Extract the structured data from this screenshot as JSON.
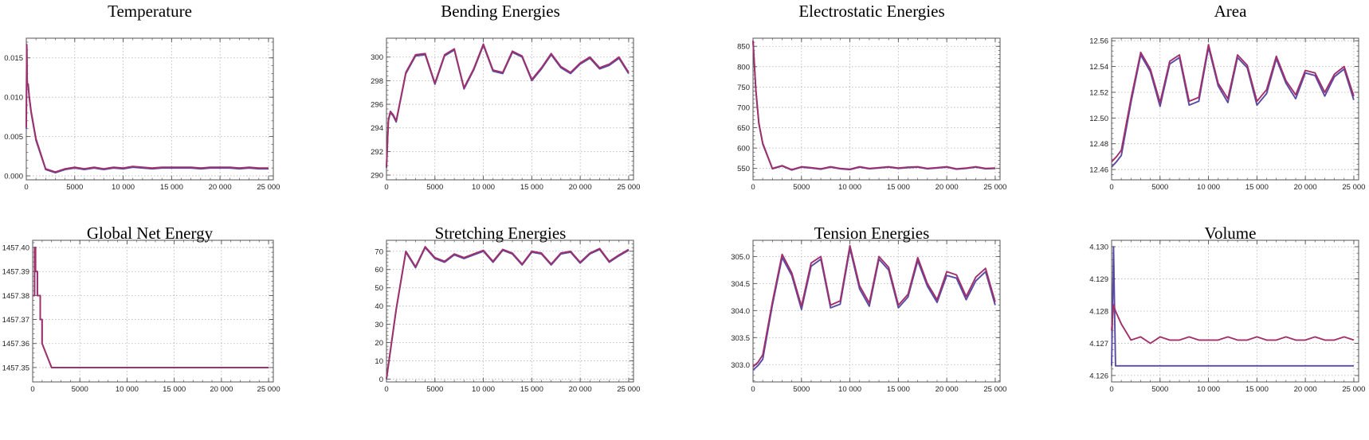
{
  "colors": {
    "series_a": "#5a4aa6",
    "series_b": "#a0306a",
    "grid": "#b3b3b3",
    "frame": "#555555"
  },
  "chart_data": [
    {
      "type": "line",
      "title": "Temperature",
      "xlim": [
        0,
        25500
      ],
      "ylim": [
        -0.0005,
        0.0175
      ],
      "xticks": [
        0,
        5000,
        10000,
        15000,
        20000,
        25000
      ],
      "xtick_labels": [
        "0",
        "5000",
        "10 000",
        "15 000",
        "20 000",
        "25 000"
      ],
      "yticks": [
        0,
        0.005,
        0.01,
        0.015
      ],
      "ytick_labels": [
        "0.000",
        "0.005",
        "0.010",
        "0.015"
      ],
      "x": [
        0,
        50,
        100,
        200,
        300,
        500,
        1000,
        2000,
        3000,
        4000,
        5000,
        6000,
        7000,
        8000,
        9000,
        10000,
        11000,
        12000,
        13000,
        14000,
        15000,
        16000,
        17000,
        18000,
        19000,
        20000,
        21000,
        22000,
        23000,
        24000,
        25000
      ],
      "series": [
        {
          "values": [
            0.006,
            0.0165,
            0.0115,
            0.0115,
            0.01,
            0.008,
            0.0045,
            0.0008,
            0.0004,
            0.0008,
            0.001,
            0.0008,
            0.001,
            0.0008,
            0.001,
            0.0009,
            0.0011,
            0.001,
            0.0009,
            0.001,
            0.001,
            0.001,
            0.001,
            0.0009,
            0.001,
            0.001,
            0.001,
            0.0009,
            0.001,
            0.0009,
            0.0009
          ]
        },
        {
          "values": [
            0.0062,
            0.0167,
            0.0117,
            0.0117,
            0.0102,
            0.0082,
            0.0047,
            0.0009,
            0.0005,
            0.0009,
            0.0011,
            0.0009,
            0.0011,
            0.0009,
            0.0011,
            0.001,
            0.0012,
            0.0011,
            0.001,
            0.0011,
            0.0011,
            0.0011,
            0.0011,
            0.001,
            0.0011,
            0.0011,
            0.0011,
            0.001,
            0.0011,
            0.001,
            0.001
          ]
        }
      ]
    },
    {
      "type": "line",
      "title": "Bending Energies",
      "xlim": [
        0,
        25500
      ],
      "ylim": [
        289.6,
        301.6
      ],
      "xticks": [
        0,
        5000,
        10000,
        15000,
        20000,
        25000
      ],
      "xtick_labels": [
        "0",
        "5000",
        "10 000",
        "15 000",
        "20 000",
        "25 000"
      ],
      "yticks": [
        290,
        292,
        294,
        296,
        298,
        300
      ],
      "ytick_labels": [
        "290",
        "292",
        "294",
        "296",
        "298",
        "300"
      ],
      "x": [
        0,
        200,
        400,
        700,
        1000,
        2000,
        3000,
        4000,
        5000,
        6000,
        7000,
        8000,
        9000,
        10000,
        11000,
        12000,
        13000,
        14000,
        15000,
        16000,
        17000,
        18000,
        19000,
        20000,
        21000,
        22000,
        23000,
        24000,
        25000
      ],
      "series": [
        {
          "values": [
            290.6,
            294.6,
            295.3,
            295.0,
            294.5,
            298.6,
            300.1,
            300.2,
            297.7,
            300.1,
            300.6,
            297.3,
            298.9,
            301.0,
            298.8,
            298.6,
            300.4,
            300.0,
            298.0,
            299.0,
            300.2,
            299.1,
            298.6,
            299.4,
            299.9,
            299.0,
            299.3,
            299.9,
            298.6
          ]
        },
        {
          "values": [
            290.7,
            294.7,
            295.4,
            295.1,
            294.6,
            298.7,
            300.2,
            300.3,
            297.8,
            300.2,
            300.7,
            297.4,
            299.0,
            301.1,
            298.9,
            298.7,
            300.5,
            300.1,
            298.1,
            299.1,
            300.3,
            299.2,
            298.7,
            299.5,
            300.0,
            299.1,
            299.4,
            300.0,
            298.7
          ]
        }
      ]
    },
    {
      "type": "line",
      "title": "Electrostatic Energies",
      "xlim": [
        0,
        25500
      ],
      "ylim": [
        522,
        870
      ],
      "xticks": [
        0,
        5000,
        10000,
        15000,
        20000,
        25000
      ],
      "xtick_labels": [
        "0",
        "5000",
        "10 000",
        "15 000",
        "20 000",
        "25 000"
      ],
      "yticks": [
        550,
        600,
        650,
        700,
        750,
        800,
        850
      ],
      "ytick_labels": [
        "550",
        "600",
        "650",
        "700",
        "750",
        "800",
        "850"
      ],
      "x": [
        0,
        300,
        600,
        1000,
        2000,
        3000,
        4000,
        5000,
        6000,
        7000,
        8000,
        9000,
        10000,
        11000,
        12000,
        13000,
        14000,
        15000,
        16000,
        17000,
        18000,
        19000,
        20000,
        21000,
        22000,
        23000,
        24000,
        25000
      ],
      "series": [
        {
          "values": [
            862,
            740,
            660,
            610,
            549,
            556,
            546,
            553,
            551,
            548,
            553,
            549,
            547,
            553,
            549,
            551,
            553,
            550,
            552,
            553,
            549,
            551,
            553,
            548,
            550,
            553,
            549,
            550
          ]
        },
        {
          "values": [
            864,
            742,
            662,
            612,
            550,
            557,
            547,
            554,
            552,
            549,
            554,
            550,
            548,
            554,
            550,
            552,
            554,
            551,
            553,
            554,
            550,
            552,
            554,
            549,
            551,
            554,
            550,
            551
          ]
        }
      ]
    },
    {
      "type": "line",
      "title": "Area",
      "xlim": [
        0,
        25500
      ],
      "ylim": [
        12.452,
        12.562
      ],
      "xticks": [
        0,
        5000,
        10000,
        15000,
        20000,
        25000
      ],
      "xtick_labels": [
        "0",
        "5000",
        "10 000",
        "15 000",
        "20 000",
        "25 000"
      ],
      "yticks": [
        12.46,
        12.48,
        12.5,
        12.52,
        12.54,
        12.56
      ],
      "ytick_labels": [
        "12.46",
        "12.48",
        "12.50",
        "12.52",
        "12.54",
        "12.56"
      ],
      "x": [
        0,
        500,
        1000,
        2000,
        3000,
        4000,
        5000,
        6000,
        7000,
        8000,
        9000,
        10000,
        11000,
        12000,
        13000,
        14000,
        15000,
        16000,
        17000,
        18000,
        19000,
        20000,
        21000,
        22000,
        23000,
        24000,
        25000
      ],
      "series": [
        {
          "values": [
            12.462,
            12.466,
            12.471,
            12.512,
            12.549,
            12.536,
            12.509,
            12.542,
            12.547,
            12.51,
            12.513,
            12.555,
            12.525,
            12.512,
            12.547,
            12.539,
            12.51,
            12.519,
            12.546,
            12.527,
            12.515,
            12.535,
            12.533,
            12.517,
            12.532,
            12.538,
            12.514
          ]
        },
        {
          "values": [
            12.466,
            12.47,
            12.475,
            12.515,
            12.551,
            12.538,
            12.512,
            12.544,
            12.549,
            12.513,
            12.516,
            12.557,
            12.527,
            12.515,
            12.549,
            12.541,
            12.513,
            12.522,
            12.548,
            12.529,
            12.518,
            12.537,
            12.535,
            12.52,
            12.534,
            12.54,
            12.517
          ]
        }
      ]
    },
    {
      "type": "line",
      "title": "Global Net Energy",
      "xlim": [
        0,
        25500
      ],
      "ylim": [
        1457.344,
        1457.403
      ],
      "xticks": [
        0,
        5000,
        10000,
        15000,
        20000,
        25000
      ],
      "xtick_labels": [
        "0",
        "5000",
        "10 000",
        "15 000",
        "20 000",
        "25 000"
      ],
      "yticks": [
        1457.35,
        1457.36,
        1457.37,
        1457.38,
        1457.39,
        1457.4
      ],
      "ytick_labels": [
        "1457.35",
        "1457.36",
        "1457.37",
        "1457.38",
        "1457.39",
        "1457.40"
      ],
      "x": [
        0,
        200,
        200,
        300,
        300,
        500,
        500,
        800,
        800,
        1000,
        1000,
        2000,
        25000
      ],
      "series": [
        {
          "values": [
            1457.38,
            1457.38,
            1457.4,
            1457.4,
            1457.39,
            1457.39,
            1457.38,
            1457.38,
            1457.37,
            1457.37,
            1457.36,
            1457.35,
            1457.35
          ]
        },
        {
          "values": [
            1457.38,
            1457.38,
            1457.4,
            1457.4,
            1457.39,
            1457.39,
            1457.38,
            1457.38,
            1457.37,
            1457.37,
            1457.36,
            1457.35,
            1457.35
          ]
        }
      ]
    },
    {
      "type": "line",
      "title": "Stretching Energies",
      "xlim": [
        0,
        25500
      ],
      "ylim": [
        -1.5,
        76
      ],
      "xticks": [
        0,
        5000,
        10000,
        15000,
        20000,
        25000
      ],
      "xtick_labels": [
        "0",
        "5000",
        "10 000",
        "15 000",
        "20 000",
        "25 000"
      ],
      "yticks": [
        0,
        10,
        20,
        30,
        40,
        50,
        60,
        70
      ],
      "ytick_labels": [
        "0",
        "10",
        "20",
        "30",
        "40",
        "50",
        "60",
        "70"
      ],
      "x": [
        0,
        1000,
        2000,
        3000,
        4000,
        5000,
        6000,
        7000,
        8000,
        9000,
        10000,
        11000,
        12000,
        13000,
        14000,
        15000,
        16000,
        17000,
        18000,
        19000,
        20000,
        21000,
        22000,
        23000,
        24000,
        25000
      ],
      "series": [
        {
          "values": [
            0,
            38,
            69.5,
            61,
            72,
            66,
            64,
            68,
            66,
            68,
            70,
            64,
            70.5,
            68.5,
            62.5,
            69.5,
            68.5,
            62.5,
            68.5,
            69.5,
            63.5,
            68.5,
            71,
            64,
            67.5,
            70.5
          ]
        },
        {
          "values": [
            0.5,
            38.5,
            70,
            61.5,
            72.5,
            66.5,
            64.5,
            68.5,
            66.5,
            68.5,
            70.5,
            64.5,
            71,
            69,
            63,
            70,
            69,
            63,
            69,
            70,
            64,
            69,
            71.5,
            64.5,
            68,
            71
          ]
        }
      ]
    },
    {
      "type": "line",
      "title": "Tension Energies",
      "xlim": [
        0,
        25500
      ],
      "ylim": [
        302.68,
        305.3
      ],
      "xticks": [
        0,
        5000,
        10000,
        15000,
        20000,
        25000
      ],
      "xtick_labels": [
        "0",
        "5000",
        "10 000",
        "15 000",
        "20 000",
        "25 000"
      ],
      "yticks": [
        303.0,
        303.5,
        304.0,
        304.5,
        305.0
      ],
      "ytick_labels": [
        "303.0",
        "303.5",
        "304.0",
        "304.5",
        "305.0"
      ],
      "x": [
        0,
        500,
        1000,
        2000,
        3000,
        4000,
        5000,
        6000,
        7000,
        8000,
        9000,
        10000,
        11000,
        12000,
        13000,
        14000,
        15000,
        16000,
        17000,
        18000,
        19000,
        20000,
        21000,
        22000,
        23000,
        24000,
        25000
      ],
      "series": [
        {
          "values": [
            302.9,
            302.98,
            303.1,
            304.1,
            304.98,
            304.65,
            304.02,
            304.82,
            304.95,
            304.05,
            304.12,
            305.15,
            304.4,
            304.08,
            304.95,
            304.75,
            304.05,
            304.25,
            304.92,
            304.45,
            304.15,
            304.65,
            304.6,
            304.2,
            304.55,
            304.72,
            304.1
          ]
        },
        {
          "values": [
            302.96,
            303.04,
            303.18,
            304.16,
            305.04,
            304.7,
            304.08,
            304.88,
            305.0,
            304.1,
            304.18,
            305.2,
            304.46,
            304.14,
            305.0,
            304.8,
            304.1,
            304.3,
            304.98,
            304.5,
            304.2,
            304.72,
            304.66,
            304.26,
            304.62,
            304.78,
            304.16
          ]
        }
      ]
    },
    {
      "type": "line",
      "title": "Volume",
      "xlim": [
        0,
        25500
      ],
      "ylim": [
        4.1258,
        4.1302
      ],
      "xticks": [
        0,
        5000,
        10000,
        15000,
        20000,
        25000
      ],
      "xtick_labels": [
        "0",
        "5000",
        "10 000",
        "15 000",
        "20 000",
        "25 000"
      ],
      "yticks": [
        4.126,
        4.127,
        4.128,
        4.129,
        4.13
      ],
      "ytick_labels": [
        "4.126",
        "4.127",
        "4.128",
        "4.129",
        "4.130"
      ],
      "x": [
        0,
        200,
        400,
        1000,
        2000,
        3000,
        4000,
        5000,
        6000,
        7000,
        8000,
        9000,
        10000,
        11000,
        12000,
        13000,
        14000,
        15000,
        16000,
        17000,
        18000,
        19000,
        20000,
        21000,
        22000,
        23000,
        24000,
        25000
      ],
      "series": [
        {
          "values": [
            4.1263,
            4.13,
            4.1263,
            4.1263,
            4.1263,
            4.1263,
            4.1263,
            4.1263,
            4.1263,
            4.1263,
            4.1263,
            4.1263,
            4.1263,
            4.1263,
            4.1263,
            4.1263,
            4.1263,
            4.1263,
            4.1263,
            4.1263,
            4.1263,
            4.1263,
            4.1263,
            4.1263,
            4.1263,
            4.1263,
            4.1263,
            4.1263
          ]
        },
        {
          "values": [
            4.1274,
            4.1282,
            4.128,
            4.1276,
            4.1271,
            4.1272,
            4.127,
            4.1272,
            4.1271,
            4.1271,
            4.1272,
            4.1271,
            4.1271,
            4.1271,
            4.1272,
            4.1271,
            4.1271,
            4.1272,
            4.1271,
            4.1271,
            4.1272,
            4.1271,
            4.1271,
            4.1272,
            4.1271,
            4.1271,
            4.1272,
            4.1271
          ]
        }
      ]
    }
  ]
}
